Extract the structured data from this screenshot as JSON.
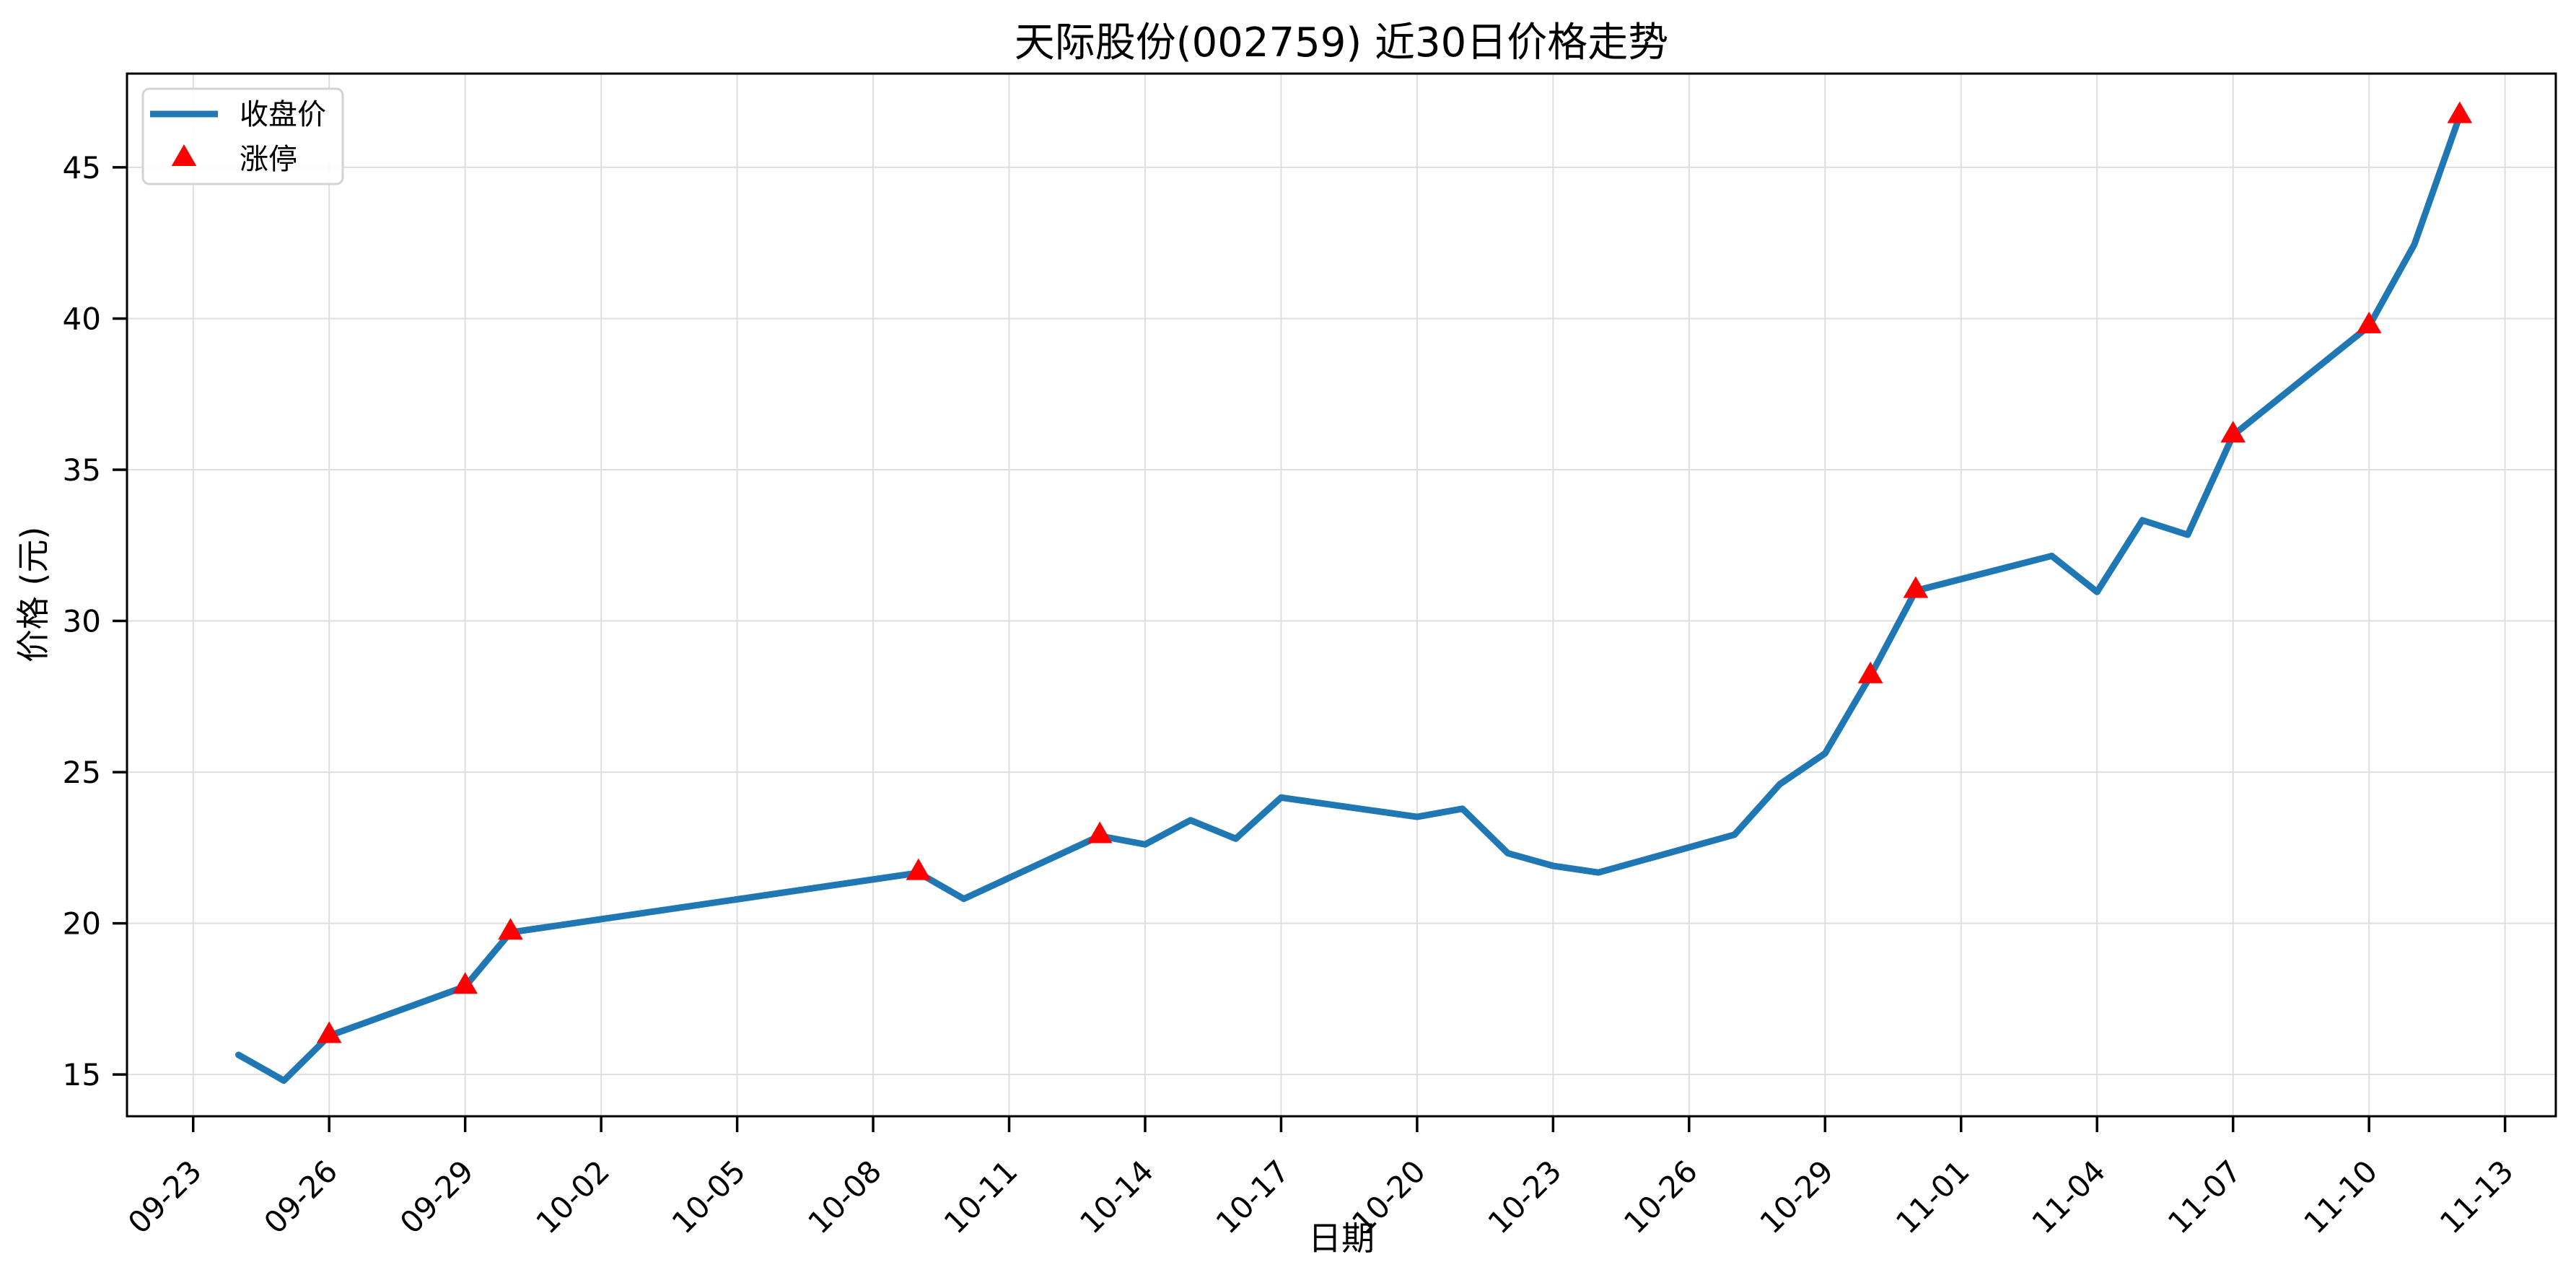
{
  "chart_data": {
    "type": "line",
    "title": "天际股份(002759) 近30日价格走势",
    "xlabel": "日期",
    "ylabel": "价格 (元)",
    "grid": "on",
    "legend_position": "upper-left",
    "ylim": [
      13.62,
      48.1
    ],
    "xlim_days": [
      -1.46,
      52.12
    ],
    "yticks": [
      15,
      20,
      25,
      30,
      35,
      40,
      45
    ],
    "xticks": [
      "09-23",
      "09-26",
      "09-29",
      "10-02",
      "10-05",
      "10-08",
      "10-11",
      "10-14",
      "10-17",
      "10-20",
      "10-23",
      "10-26",
      "10-29",
      "11-01",
      "11-04",
      "11-07",
      "11-10",
      "11-13"
    ],
    "series": [
      {
        "name": "收盘价",
        "color": "#1f77b4",
        "dates": [
          "09-24",
          "09-25",
          "09-26",
          "09-29",
          "09-30",
          "10-09",
          "10-10",
          "10-13",
          "10-14",
          "10-15",
          "10-16",
          "10-17",
          "10-20",
          "10-21",
          "10-22",
          "10-23",
          "10-24",
          "10-27",
          "10-28",
          "10-29",
          "10-30",
          "10-31",
          "11-03",
          "11-04",
          "11-05",
          "11-06",
          "11-07",
          "11-10",
          "11-11",
          "11-12"
        ],
        "values": [
          15.65,
          14.8,
          16.28,
          17.91,
          19.7,
          21.67,
          20.81,
          22.89,
          22.61,
          23.41,
          22.8,
          24.16,
          23.52,
          23.79,
          22.32,
          21.9,
          21.68,
          22.93,
          24.6,
          25.62,
          28.18,
          31.0,
          32.15,
          30.96,
          33.33,
          32.85,
          36.14,
          39.75,
          42.45,
          46.7
        ]
      }
    ],
    "markers": {
      "name": "涨停",
      "color": "#ff0000",
      "shape": "triangle-up",
      "dates": [
        "09-26",
        "09-29",
        "09-30",
        "10-09",
        "10-13",
        "10-30",
        "10-31",
        "11-07",
        "11-10",
        "11-12"
      ]
    },
    "legend": {
      "items": [
        {
          "label": "收盘价",
          "swatch": "line"
        },
        {
          "label": "涨停",
          "swatch": "triangle-up"
        }
      ]
    }
  },
  "colors": {
    "background": "#ffffff",
    "text": "#000000",
    "grid": "#dedede",
    "spine": "#000000"
  }
}
